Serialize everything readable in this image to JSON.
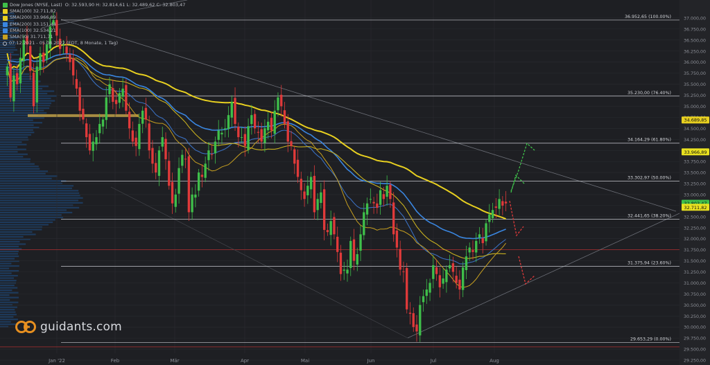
{
  "legend": {
    "instrument": "Dow Jones (NYSE, Last)",
    "ohlc": "O: 32.593,90  H: 32.814,61  L: 32.489,62  C: 32.803,47",
    "period": "07.12.2021 - 05.08.2022  (EDT, 8 Monate, 1 Tag)",
    "indicators": [
      {
        "label": "SMA(100)",
        "value": "32.711,82",
        "color": "#e8d020"
      },
      {
        "label": "SMA(200)",
        "value": "33.966,89",
        "color": "#e8d020"
      },
      {
        "label": "EMA(200)",
        "value": "33.151,44",
        "color": "#3a86e0"
      },
      {
        "label": "EMA(100)",
        "value": "32.534,21",
        "color": "#3a86e0"
      },
      {
        "label": "SMA(50)",
        "value": "31.711,71",
        "color": "#c8a020"
      }
    ]
  },
  "logo": {
    "text": "guidants.com"
  },
  "colors": {
    "up": "#3fbf4a",
    "down": "#e03a3a",
    "sma200": "#e8d020",
    "ema200": "#3a86e0",
    "ema100": "#3a6fbf",
    "sma50": "#c8a020",
    "sma100": "#c8b020"
  },
  "chart_data": {
    "type": "candlestick",
    "title": "Dow Jones (NYSE, Last)",
    "ylim": [
      29250,
      37250
    ],
    "y_ticks": [
      "37.000,00",
      "36.750,00",
      "36.500,00",
      "36.250,00",
      "36.000,00",
      "35.750,00",
      "35.500,00",
      "35.250,00",
      "35.000,00",
      "34.750,00",
      "34.500,00",
      "34.250,00",
      "34.000,00",
      "33.750,00",
      "33.500,00",
      "33.250,00",
      "33.000,00",
      "32.750,00",
      "32.500,00",
      "32.250,00",
      "32.000,00",
      "31.750,00",
      "31.500,00",
      "31.250,00",
      "31.000,00",
      "30.750,00",
      "30.500,00",
      "30.250,00",
      "30.000,00",
      "29.750,00",
      "29.500,00",
      "29.250,00"
    ],
    "x_ticks": [
      "Jan '22",
      "Feb",
      "Mär",
      "Apr",
      "Mai",
      "Jun",
      "Jul",
      "Aug"
    ],
    "price_badges": [
      {
        "label": "34.689,85",
        "value": 34689.85,
        "bg": "#e8d020",
        "fg": "#111"
      },
      {
        "label": "33.966,89",
        "value": 33966.89,
        "bg": "#e8e020",
        "fg": "#111"
      },
      {
        "label": "32.803,47",
        "value": 32803.47,
        "bg": "#3fbf4a",
        "fg": "#111"
      },
      {
        "label": "32.711,82",
        "value": 32711.82,
        "bg": "#e8e020",
        "fg": "#111"
      }
    ],
    "fib_levels": [
      {
        "label": "36.952,65 (100.00%)",
        "value": 36952.65
      },
      {
        "label": "35.230,00 (76.40%)",
        "value": 35230.0
      },
      {
        "label": "34.164,29 (61.80%)",
        "value": 34164.29
      },
      {
        "label": "33.302,97 (50.00%)",
        "value": 33302.97
      },
      {
        "label": "32.441,65 (38.20%)",
        "value": 32441.65
      },
      {
        "label": "31.375,94 (23.60%)",
        "value": 31375.94
      },
      {
        "label": "29.653,29 (0.00%)",
        "value": 29653.29
      }
    ],
    "red_lines": [
      31750,
      29550
    ],
    "closes": [
      35900,
      35200,
      35700,
      35500,
      36100,
      36500,
      36400,
      35800,
      35000,
      35900,
      36200,
      36000,
      36400,
      36800,
      36950,
      36600,
      36300,
      36400,
      36200,
      36000,
      35700,
      35400,
      34900,
      34700,
      34300,
      34000,
      34200,
      34300,
      34600,
      34700,
      35200,
      35500,
      35100,
      35050,
      35300,
      35400,
      34900,
      34500,
      34200,
      34100,
      34600,
      34900,
      34700,
      34000,
      33700,
      33500,
      34000,
      34300,
      33800,
      33200,
      32800,
      33000,
      33600,
      33900,
      33800,
      32600,
      33000,
      33000,
      33500,
      33400,
      33700,
      34000,
      33900,
      34200,
      34450,
      34400,
      34500,
      34800,
      35100,
      34600,
      34300,
      34300,
      34100,
      34550,
      34800,
      34500,
      34400,
      34200,
      34500,
      34650,
      34450,
      34900,
      35200,
      35000,
      34600,
      34200,
      34100,
      33700,
      33400,
      33100,
      32900,
      33200,
      33400,
      32600,
      32900,
      33050,
      32200,
      32150,
      32400,
      32100,
      31700,
      31200,
      31300,
      31300,
      31950,
      31500,
      31650,
      32100,
      32600,
      32800,
      32900,
      32800,
      32700,
      33100,
      32900,
      33200,
      32900,
      32100,
      31800,
      31300,
      31250,
      30400,
      30300,
      30000,
      29900,
      30500,
      30700,
      30850,
      31000,
      31400,
      31200,
      30900,
      31100,
      31300,
      31400,
      31250,
      31000,
      30850,
      31350,
      31600,
      31800,
      31700,
      31950,
      32100,
      31900,
      32350,
      32550,
      32650,
      32700,
      32900,
      32750,
      32800
    ]
  }
}
